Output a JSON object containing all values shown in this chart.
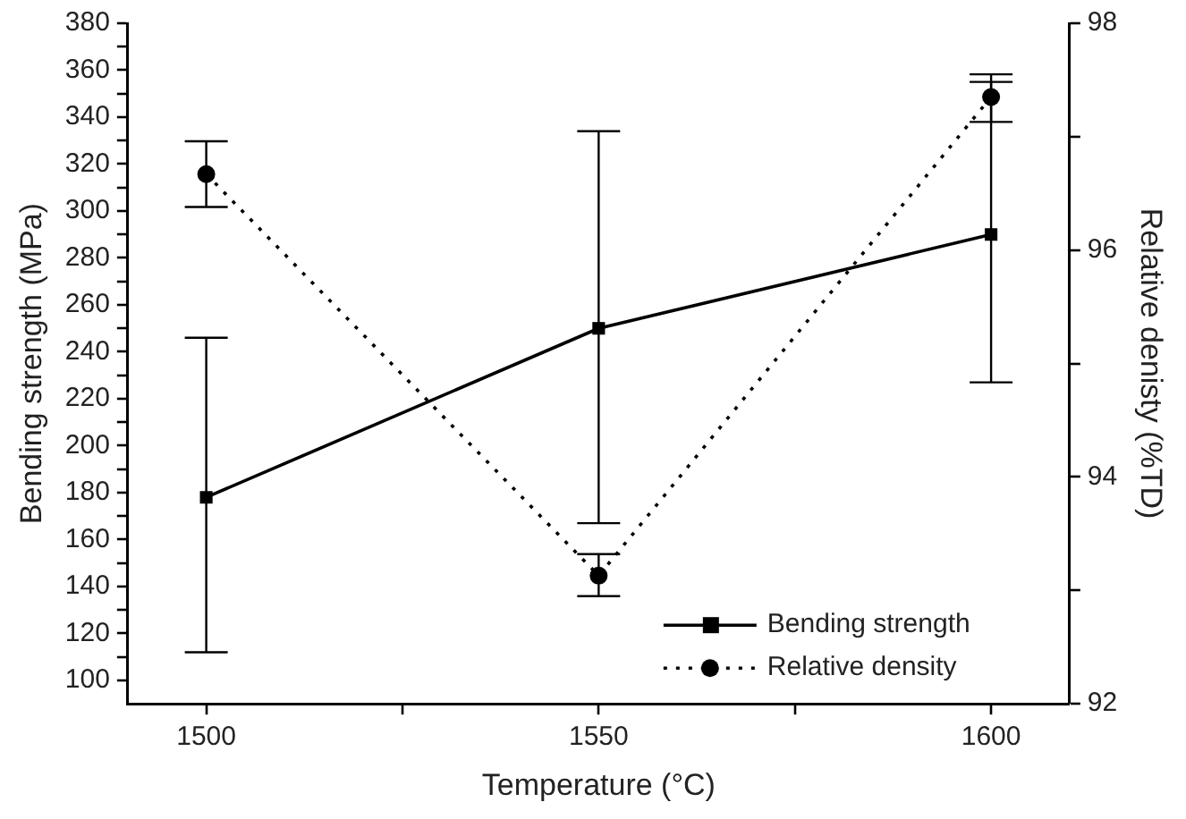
{
  "chart_data": {
    "type": "line",
    "xlabel": "Temperature (°C)",
    "ylabel": "Bending strength (MPa)",
    "y2label": "Relative denisty (%TD)",
    "x": [
      1500,
      1550,
      1600
    ],
    "xlim": [
      1490,
      1610
    ],
    "xticks": [
      1500,
      {
        "value": 1525,
        "label": null
      },
      1550,
      {
        "value": 1575,
        "label": null
      },
      1600
    ],
    "ylim": [
      90,
      380
    ],
    "yticks": [
      100,
      {
        "value": 110,
        "label": null
      },
      120,
      {
        "value": 130,
        "label": null
      },
      140,
      {
        "value": 150,
        "label": null
      },
      160,
      {
        "value": 170,
        "label": null
      },
      180,
      {
        "value": 190,
        "label": null
      },
      200,
      {
        "value": 210,
        "label": null
      },
      220,
      {
        "value": 230,
        "label": null
      },
      240,
      {
        "value": 250,
        "label": null
      },
      260,
      {
        "value": 270,
        "label": null
      },
      280,
      {
        "value": 290,
        "label": null
      },
      300,
      {
        "value": 310,
        "label": null
      },
      320,
      {
        "value": 330,
        "label": null
      },
      340,
      {
        "value": 350,
        "label": null
      },
      360,
      {
        "value": 370,
        "label": null
      },
      380
    ],
    "y2lim": [
      92,
      98
    ],
    "y2ticks": [
      92,
      {
        "value": 93,
        "label": null
      },
      94,
      {
        "value": 95,
        "label": null
      },
      96,
      {
        "value": 97,
        "label": null
      },
      98
    ],
    "series": [
      {
        "name": "Bending strength",
        "color": "#000000",
        "values": [
          178,
          250,
          290
        ],
        "errors": [
          [
            112,
            246
          ],
          [
            167,
            334
          ],
          [
            227,
            355
          ]
        ],
        "marker": "square",
        "line_style": "solid"
      },
      {
        "name": "Relative density",
        "color": "#000000",
        "values": [
          96.67,
          93.13,
          97.35
        ],
        "errors": [
          [
            96.38,
            96.96
          ],
          [
            92.95,
            93.32
          ],
          [
            97.13,
            97.55
          ]
        ],
        "marker": "circle",
        "line_style": "dotted",
        "axis": "y2"
      }
    ],
    "legend": "bottom right",
    "grid": false
  }
}
